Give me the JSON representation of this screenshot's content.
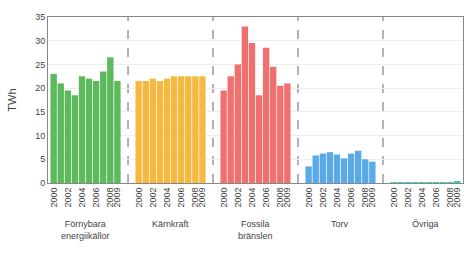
{
  "chart_data": {
    "type": "bar",
    "categories": [
      "2000",
      null,
      "2002",
      null,
      "2004",
      null,
      "2006",
      null,
      "2008",
      "2009"
    ],
    "series": [
      {
        "name": "Förnybara\nenergiikällor",
        "color": "#5cba5c",
        "values": [
          23.0,
          21.0,
          19.5,
          18.5,
          22.5,
          22.0,
          21.5,
          23.5,
          26.5,
          21.5
        ]
      },
      {
        "name": "Kärnkraft",
        "color": "#f5b942",
        "values": [
          21.5,
          21.5,
          22.0,
          21.5,
          22.0,
          22.5,
          22.5,
          22.5,
          22.5,
          22.5
        ]
      },
      {
        "name": "Fossila\nbränslen",
        "color": "#f07070",
        "values": [
          19.5,
          22.5,
          25.0,
          33.0,
          29.5,
          18.5,
          28.5,
          24.5,
          20.5,
          21.0
        ]
      },
      {
        "name": "Torv",
        "color": "#5baae8",
        "values": [
          3.5,
          5.8,
          6.2,
          6.5,
          6.0,
          5.2,
          6.2,
          6.8,
          5.0,
          4.5
        ]
      },
      {
        "name": "Övriga",
        "color": "#40c8b0",
        "values": [
          0.2,
          0.2,
          0.2,
          0.2,
          0.2,
          0.2,
          0.2,
          0.2,
          0.2,
          0.4
        ]
      }
    ],
    "ylabel": "TWh",
    "ylim": [
      0,
      35
    ],
    "yticks": [
      0,
      5,
      10,
      15,
      20,
      25,
      30,
      35
    ],
    "grid": true
  }
}
